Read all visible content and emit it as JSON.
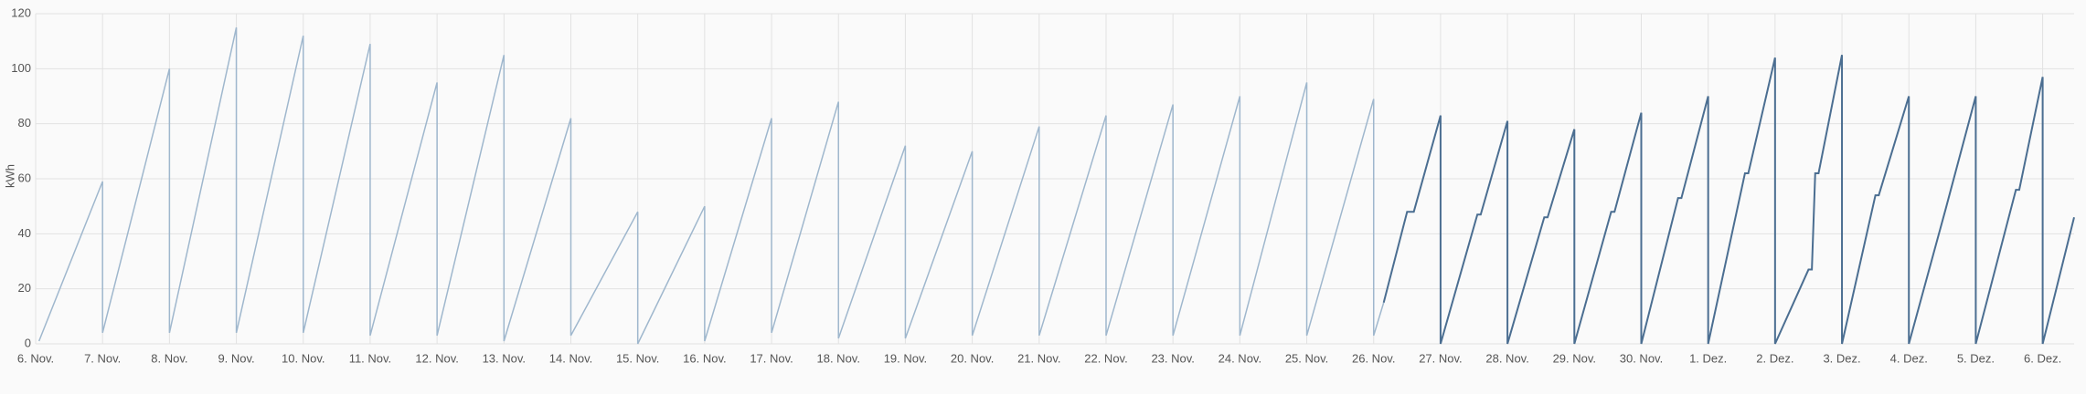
{
  "chart_data": {
    "type": "line",
    "y_label": "kWh",
    "ylim": [
      0,
      120
    ],
    "yticks": [
      0,
      20,
      40,
      60,
      80,
      100,
      120
    ],
    "xlim": [
      0,
      30.47
    ],
    "xticks": [
      {
        "value": 0,
        "label": "6. Nov."
      },
      {
        "value": 1,
        "label": "7. Nov."
      },
      {
        "value": 2,
        "label": "8. Nov."
      },
      {
        "value": 3,
        "label": "9. Nov."
      },
      {
        "value": 4,
        "label": "10. Nov."
      },
      {
        "value": 5,
        "label": "11. Nov."
      },
      {
        "value": 6,
        "label": "12. Nov."
      },
      {
        "value": 7,
        "label": "13. Nov."
      },
      {
        "value": 8,
        "label": "14. Nov."
      },
      {
        "value": 9,
        "label": "15. Nov."
      },
      {
        "value": 10,
        "label": "16. Nov."
      },
      {
        "value": 11,
        "label": "17. Nov."
      },
      {
        "value": 12,
        "label": "18. Nov."
      },
      {
        "value": 13,
        "label": "19. Nov."
      },
      {
        "value": 14,
        "label": "20. Nov."
      },
      {
        "value": 15,
        "label": "21. Nov."
      },
      {
        "value": 16,
        "label": "22. Nov."
      },
      {
        "value": 17,
        "label": "23. Nov."
      },
      {
        "value": 18,
        "label": "24. Nov."
      },
      {
        "value": 19,
        "label": "25. Nov."
      },
      {
        "value": 20,
        "label": "26. Nov."
      },
      {
        "value": 21,
        "label": "27. Nov."
      },
      {
        "value": 22,
        "label": "28. Nov."
      },
      {
        "value": 23,
        "label": "29. Nov."
      },
      {
        "value": 24,
        "label": "30. Nov."
      },
      {
        "value": 25,
        "label": "1. Dez."
      },
      {
        "value": 26,
        "label": "2. Dez."
      },
      {
        "value": 27,
        "label": "3. Dez."
      },
      {
        "value": 28,
        "label": "4. Dez."
      },
      {
        "value": 29,
        "label": "5. Dez."
      },
      {
        "value": 30,
        "label": "6. Dez."
      }
    ],
    "grid": true,
    "series": [
      {
        "color": "#9fb7cd",
        "x": [
          0.05,
          1,
          1,
          2,
          2,
          3,
          3,
          4,
          4,
          5,
          5,
          6,
          6,
          7,
          7,
          8,
          8,
          9,
          9,
          10,
          10,
          11,
          11,
          12,
          12,
          13,
          13,
          14,
          14,
          15,
          15,
          16,
          16,
          17,
          17,
          18,
          18,
          19,
          19,
          20,
          20,
          20.15
        ],
        "values": [
          1,
          59,
          4,
          100,
          4,
          115,
          4,
          112,
          4,
          109,
          3,
          95,
          3,
          105,
          1,
          82,
          3,
          48,
          0,
          50,
          1,
          82,
          4,
          88,
          2,
          72,
          2,
          70,
          3,
          79,
          3,
          83,
          3,
          87,
          3,
          90,
          3,
          95,
          3,
          89,
          3,
          15
        ]
      },
      {
        "color": "#4b6e91",
        "x": [
          20.15,
          20.5,
          20.6,
          21,
          21,
          21.55,
          21.6,
          22,
          22,
          22.55,
          22.6,
          23,
          23,
          23.55,
          23.6,
          24,
          24,
          24.55,
          24.6,
          25,
          25,
          25.55,
          25.6,
          26,
          26,
          26.5,
          26.55,
          26.6,
          26.65,
          27,
          27,
          27.5,
          27.55,
          28,
          28,
          28.55,
          29,
          29,
          29.6,
          29.65,
          30,
          30,
          30.47
        ],
        "values": [
          15,
          48,
          48,
          83,
          0,
          47,
          47,
          81,
          0,
          46,
          46,
          78,
          0,
          48,
          48,
          84,
          0,
          53,
          53,
          90,
          0,
          62,
          62,
          104,
          0,
          27,
          27,
          62,
          62,
          105,
          0,
          54,
          54,
          90,
          0,
          49,
          90,
          0,
          56,
          56,
          97,
          0,
          46
        ]
      }
    ]
  }
}
